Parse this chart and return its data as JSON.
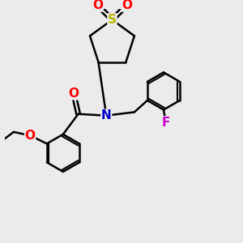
{
  "bg_color": "#ebebeb",
  "bond_color": "#000000",
  "atom_colors": {
    "O": "#ff0000",
    "N": "#0000cc",
    "S": "#b8b800",
    "F": "#cc00cc",
    "C": "#000000"
  },
  "bond_width": 1.8,
  "font_size": 11
}
